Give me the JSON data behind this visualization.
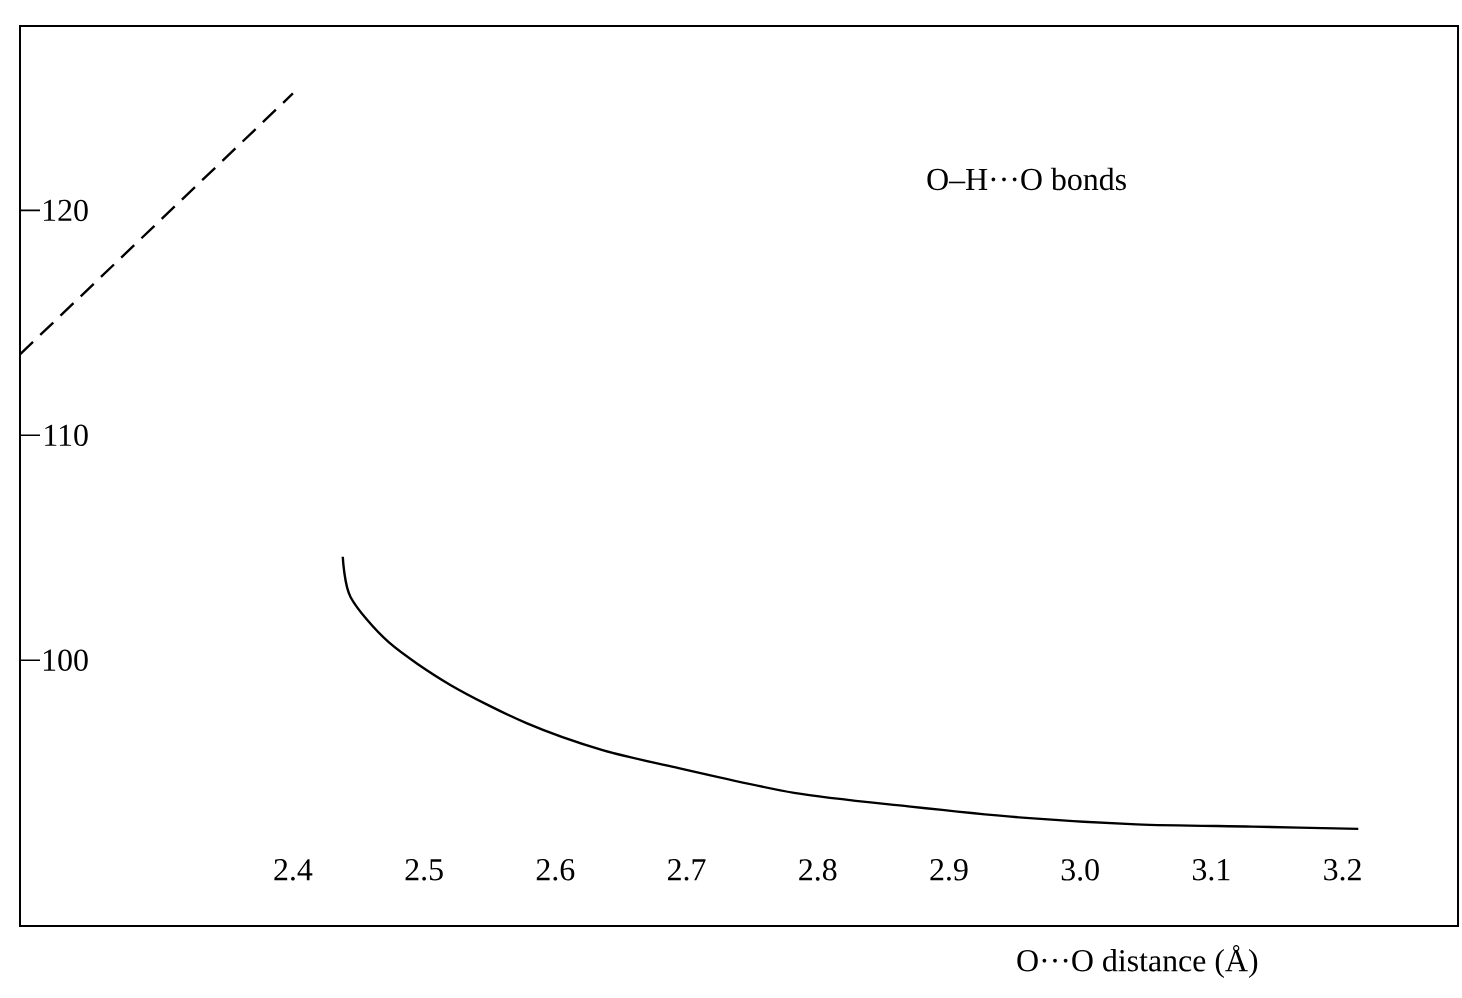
{
  "chart_data": {
    "type": "line",
    "xlabel": "O···O distance (Å)",
    "annotations": [
      "O–H···O   bonds"
    ],
    "xlim": [
      2.192,
      3.288
    ],
    "ylim": [
      88.18,
      128.2
    ],
    "xticks": [
      2.4,
      2.5,
      2.6,
      2.7,
      2.8,
      2.9,
      {
        "value": 3.0,
        "label": "3.0"
      },
      3.1,
      3.2
    ],
    "yticks": [
      100,
      110,
      120
    ],
    "series": [
      {
        "color": "#000000",
        "line_style": "dashed",
        "x": [
          2.192,
          2.4
        ],
        "values": [
          113.6,
          125.2
        ]
      },
      {
        "color": "#000000",
        "line_style": "solid",
        "x": [
          2.438,
          2.444,
          2.473,
          2.52,
          2.578,
          2.636,
          2.694,
          2.782,
          2.869,
          2.956,
          3.043,
          3.131,
          3.212
        ],
        "values": [
          104.6,
          102.8,
          100.8,
          98.9,
          97.2,
          96.0,
          95.2,
          94.1,
          93.5,
          93.0,
          92.7,
          92.6,
          92.5
        ]
      }
    ]
  }
}
